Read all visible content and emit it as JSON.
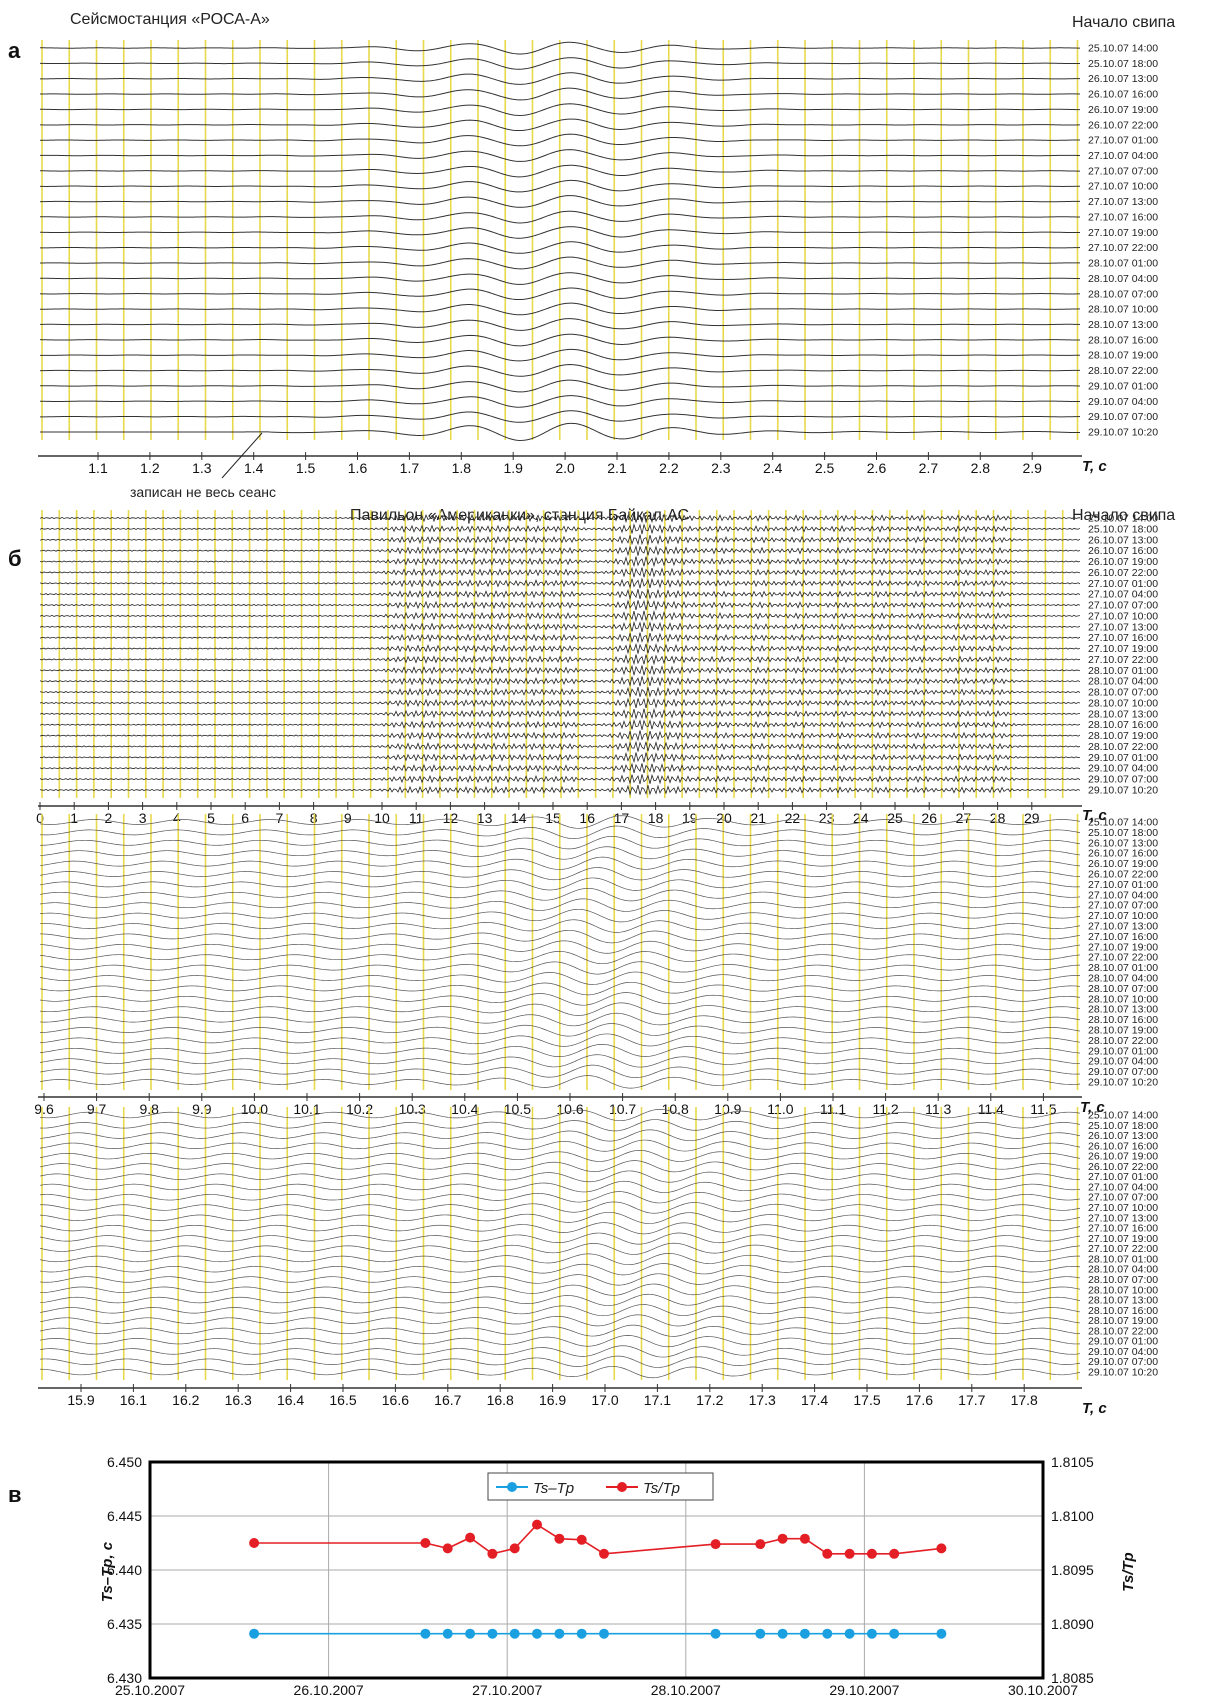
{
  "dates": [
    "25.10.07 14:00",
    "25.10.07 18:00",
    "26.10.07 13:00",
    "26.10.07 16:00",
    "26.10.07 19:00",
    "26.10.07 22:00",
    "27.10.07 01:00",
    "27.10.07 04:00",
    "27.10.07 07:00",
    "27.10.07 10:00",
    "27.10.07 13:00",
    "27.10.07 16:00",
    "27.10.07 19:00",
    "27.10.07 22:00",
    "28.10.07 01:00",
    "28.10.07 04:00",
    "28.10.07 07:00",
    "28.10.07 10:00",
    "28.10.07 13:00",
    "28.10.07 16:00",
    "28.10.07 19:00",
    "28.10.07 22:00",
    "29.10.07 01:00",
    "29.10.07 04:00",
    "29.10.07 07:00",
    "29.10.07 10:20"
  ],
  "panel_a": {
    "letter": "а",
    "title": "Сейсмостанция «РОСА-А»",
    "sweep_label": "Начало свипа",
    "annotation": "записан не весь сеанс",
    "axis_label": "T, c",
    "ticks": [
      "1.1",
      "1.2",
      "1.3",
      "1.4",
      "1.5",
      "1.6",
      "1.7",
      "1.8",
      "1.9",
      "2.0",
      "2.1",
      "2.2",
      "2.3",
      "2.4",
      "2.5",
      "2.6",
      "2.7",
      "2.8",
      "2.9"
    ]
  },
  "panel_b": {
    "letter": "б",
    "title": "Павильон «Американки», станция Байкал-АС",
    "sweep_label": "Начало свипа",
    "axis_label": "T, c",
    "ticks": [
      "0",
      "1",
      "2",
      "3",
      "4",
      "5",
      "6",
      "7",
      "8",
      "9",
      "10",
      "11",
      "12",
      "13",
      "14",
      "15",
      "16",
      "17",
      "18",
      "19",
      "20",
      "21",
      "22",
      "23",
      "24",
      "25",
      "26",
      "27",
      "28",
      "29"
    ]
  },
  "panel_b2": {
    "axis_label": "T, c",
    "ticks": [
      "9.6",
      "9.7",
      "9.8",
      "9.9",
      "10.0",
      "10.1",
      "10.2",
      "10.3",
      "10.4",
      "10.5",
      "10.6",
      "10.7",
      "10.8",
      "10.9",
      "11.0",
      "11.1",
      "11.2",
      "11.3",
      "11.4",
      "11.5"
    ]
  },
  "panel_b3": {
    "axis_label": "T, c",
    "ticks": [
      "15.9",
      "16.1",
      "16.2",
      "16.3",
      "16.4",
      "16.5",
      "16.6",
      "16.7",
      "16.8",
      "16.9",
      "17.0",
      "17.1",
      "17.2",
      "17.3",
      "17.4",
      "17.5",
      "17.6",
      "17.7",
      "17.8"
    ]
  },
  "chart_data": {
    "letter": "в",
    "type": "line",
    "x_ticks": [
      "25.10.2007",
      "26.10.2007",
      "27.10.2007",
      "28.10.2007",
      "29.10.2007",
      "30.10.2007"
    ],
    "ylabel_left": "Ts–Tp, c",
    "ylabel_right": "Ts/Tp",
    "ylim_left": [
      6.43,
      6.45
    ],
    "ylim_right": [
      1.8085,
      1.8105
    ],
    "yticks_left": [
      "6.430",
      "6.435",
      "6.440",
      "6.445",
      "6.450"
    ],
    "yticks_right": [
      "1.8085",
      "1.8090",
      "1.8095",
      "1.8100",
      "1.8105"
    ],
    "grid": true,
    "legend_position": "top-center",
    "series": [
      {
        "name": "Ts–Tp",
        "axis": "left",
        "color": "#1aa0e0",
        "x": [
          25.583,
          26.542,
          26.667,
          26.792,
          26.917,
          27.042,
          27.167,
          27.292,
          27.417,
          27.542,
          28.167,
          28.417,
          28.542,
          28.667,
          28.792,
          28.917,
          29.042,
          29.167,
          29.431
        ],
        "y": [
          6.4341,
          6.4341,
          6.4341,
          6.4341,
          6.4341,
          6.4341,
          6.4341,
          6.4341,
          6.4341,
          6.4341,
          6.4341,
          6.4341,
          6.4341,
          6.4341,
          6.4341,
          6.4341,
          6.4341,
          6.4341,
          6.4341
        ]
      },
      {
        "name": "Ts/Tp",
        "axis": "right",
        "color": "#e31e24",
        "x": [
          25.583,
          26.542,
          26.667,
          26.792,
          26.917,
          27.042,
          27.167,
          27.292,
          27.417,
          27.542,
          28.167,
          28.417,
          28.542,
          28.667,
          28.792,
          28.917,
          29.042,
          29.167,
          29.431
        ],
        "y": [
          1.80975,
          1.80975,
          1.8097,
          1.8098,
          1.80965,
          1.8097,
          1.80992,
          1.80979,
          1.80978,
          1.80965,
          1.80974,
          1.80974,
          1.80979,
          1.80979,
          1.80965,
          1.80965,
          1.80965,
          1.80965,
          1.8097
        ]
      }
    ]
  }
}
